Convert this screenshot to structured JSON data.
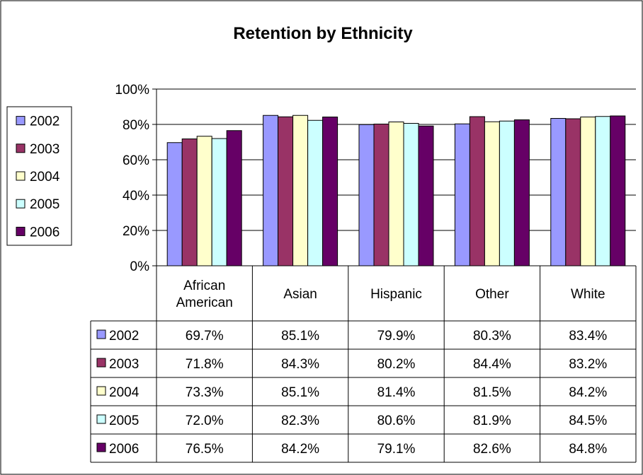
{
  "chart_data": {
    "type": "bar",
    "title": "Retention by Ethnicity",
    "categories": [
      "African American",
      "Asian",
      "Hispanic",
      "Other",
      "White"
    ],
    "category_lines": [
      [
        "African",
        "American"
      ],
      [
        "Asian"
      ],
      [
        "Hispanic"
      ],
      [
        "Other"
      ],
      [
        "White"
      ]
    ],
    "yticks": [
      "0%",
      "20%",
      "40%",
      "60%",
      "80%",
      "100%"
    ],
    "ylim": [
      0,
      100
    ],
    "grid": true,
    "legend": "left",
    "series": [
      {
        "name": "2002",
        "color": "#9999FF",
        "values": [
          69.7,
          85.1,
          79.9,
          80.3,
          83.4
        ],
        "labels": [
          "69.7%",
          "85.1%",
          "79.9%",
          "80.3%",
          "83.4%"
        ]
      },
      {
        "name": "2003",
        "color": "#993366",
        "values": [
          71.8,
          84.3,
          80.2,
          84.4,
          83.2
        ],
        "labels": [
          "71.8%",
          "84.3%",
          "80.2%",
          "84.4%",
          "83.2%"
        ]
      },
      {
        "name": "2004",
        "color": "#FFFFCC",
        "values": [
          73.3,
          85.1,
          81.4,
          81.5,
          84.2
        ],
        "labels": [
          "73.3%",
          "85.1%",
          "81.4%",
          "81.5%",
          "84.2%"
        ]
      },
      {
        "name": "2005",
        "color": "#CCFFFF",
        "values": [
          72.0,
          82.3,
          80.6,
          81.9,
          84.5
        ],
        "labels": [
          "72.0%",
          "82.3%",
          "80.6%",
          "81.9%",
          "84.5%"
        ]
      },
      {
        "name": "2006",
        "color": "#660066",
        "values": [
          76.5,
          84.2,
          79.1,
          82.6,
          84.8
        ],
        "labels": [
          "76.5%",
          "84.2%",
          "79.1%",
          "82.6%",
          "84.8%"
        ]
      }
    ]
  }
}
